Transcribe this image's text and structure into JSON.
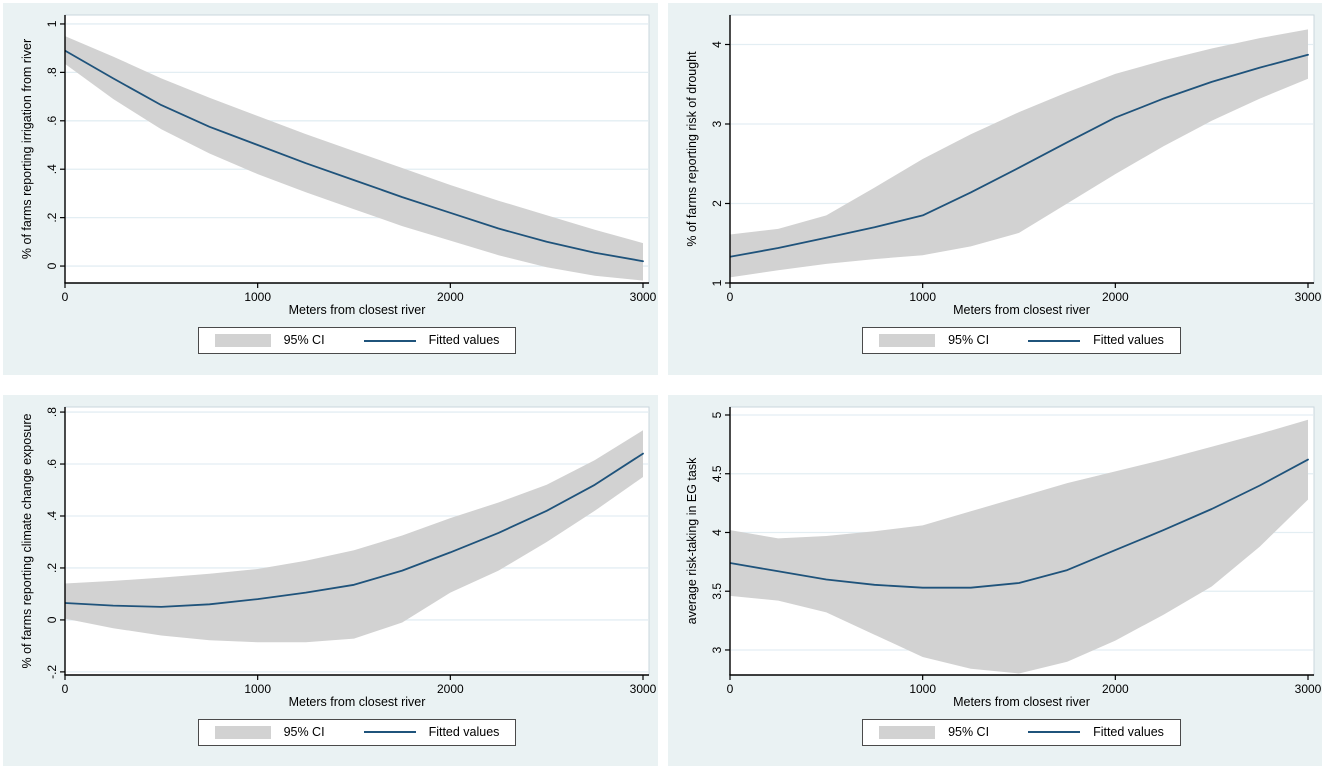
{
  "figure": {
    "x_axis_title": "Meters from closest river",
    "legend": {
      "ci_label": "95% CI",
      "fitted_label": "Fitted values"
    }
  },
  "colors": {
    "panel_bg": "#eaf2f3",
    "plot_bg": "#ffffff",
    "grid": "#e3eef3",
    "plot_border": "#c9d7de",
    "ci_fill": "#d2d2d2",
    "fitted_line": "#1f537b",
    "axis": "#000000",
    "legend_border": "#4a4a4a"
  },
  "panels": [
    {
      "y_title": "% of farms reporting irrigation from river",
      "x_title": "Meters from closest river",
      "legend_ci": "95% CI",
      "legend_fitted": "Fitted values"
    },
    {
      "y_title": "% of farms reporting risk of drought",
      "x_title": "Meters from closest river",
      "legend_ci": "95% CI",
      "legend_fitted": "Fitted values"
    },
    {
      "y_title": "% of farms reporting climate change exposure",
      "x_title": "Meters from closest river",
      "legend_ci": "95% CI",
      "legend_fitted": "Fitted values"
    },
    {
      "y_title": "average risk-taking in EG task",
      "x_title": "Meters from closest river",
      "legend_ci": "95% CI",
      "legend_fitted": "Fitted values"
    }
  ],
  "chart_data": [
    {
      "type": "line",
      "ylabel": "% of farms reporting irrigation from river",
      "xlabel": "Meters from closest river",
      "legend_position": "bottom",
      "grid": true,
      "x": [
        0,
        250,
        500,
        750,
        1000,
        1250,
        1500,
        1750,
        2000,
        2250,
        2500,
        2750,
        3000
      ],
      "x_ticks": [
        0,
        1000,
        2000,
        3000
      ],
      "y_ticks": [
        "0",
        ".2",
        ".4",
        ".6",
        ".8",
        "1"
      ],
      "y_tick_values": [
        0,
        0.2,
        0.4,
        0.6,
        0.8,
        1
      ],
      "ylim": [
        -0.07,
        1.037
      ],
      "series": [
        {
          "name": "Fitted values",
          "values": [
            0.89,
            0.775,
            0.665,
            0.575,
            0.5,
            0.425,
            0.355,
            0.285,
            0.22,
            0.155,
            0.1,
            0.055,
            0.02
          ]
        },
        {
          "name": "95% CI upper",
          "values": [
            0.95,
            0.865,
            0.775,
            0.695,
            0.62,
            0.545,
            0.475,
            0.405,
            0.335,
            0.27,
            0.21,
            0.15,
            0.095
          ]
        },
        {
          "name": "95% CI lower",
          "values": [
            0.835,
            0.69,
            0.565,
            0.465,
            0.38,
            0.305,
            0.235,
            0.165,
            0.105,
            0.045,
            -0.005,
            -0.04,
            -0.06
          ]
        }
      ]
    },
    {
      "type": "line",
      "ylabel": "% of farms reporting risk of drought",
      "xlabel": "Meters from closest river",
      "legend_position": "bottom",
      "grid": true,
      "x": [
        0,
        250,
        500,
        750,
        1000,
        1250,
        1500,
        1750,
        2000,
        2250,
        2500,
        2750,
        3000
      ],
      "x_ticks": [
        0,
        1000,
        2000,
        3000
      ],
      "y_ticks": [
        "1",
        "2",
        "3",
        "4"
      ],
      "y_tick_values": [
        1,
        2,
        3,
        4
      ],
      "ylim": [
        1.0,
        4.371
      ],
      "series": [
        {
          "name": "Fitted values",
          "values": [
            1.33,
            1.44,
            1.57,
            1.7,
            1.85,
            2.14,
            2.45,
            2.77,
            3.08,
            3.32,
            3.53,
            3.71,
            3.87
          ]
        },
        {
          "name": "95% CI upper",
          "values": [
            1.61,
            1.68,
            1.85,
            2.2,
            2.56,
            2.87,
            3.15,
            3.4,
            3.63,
            3.8,
            3.95,
            4.08,
            4.19
          ]
        },
        {
          "name": "95% CI lower",
          "values": [
            1.07,
            1.16,
            1.24,
            1.3,
            1.35,
            1.46,
            1.63,
            2.0,
            2.37,
            2.72,
            3.04,
            3.32,
            3.57
          ]
        }
      ]
    },
    {
      "type": "line",
      "ylabel": "% of farms reporting climate change exposure",
      "xlabel": "Meters from closest river",
      "legend_position": "bottom",
      "grid": true,
      "x": [
        0,
        250,
        500,
        750,
        1000,
        1250,
        1500,
        1750,
        2000,
        2250,
        2500,
        2750,
        3000
      ],
      "x_ticks": [
        0,
        1000,
        2000,
        3000
      ],
      "y_ticks": [
        "-.2",
        "0",
        ".2",
        ".4",
        ".6",
        ".8"
      ],
      "y_tick_values": [
        -0.2,
        0,
        0.2,
        0.4,
        0.6,
        0.8
      ],
      "ylim": [
        -0.212,
        0.8195
      ],
      "series": [
        {
          "name": "Fitted values",
          "values": [
            0.065,
            0.055,
            0.05,
            0.06,
            0.08,
            0.105,
            0.135,
            0.19,
            0.26,
            0.335,
            0.42,
            0.52,
            0.64
          ]
        },
        {
          "name": "95% CI upper",
          "values": [
            0.14,
            0.15,
            0.163,
            0.178,
            0.196,
            0.228,
            0.268,
            0.325,
            0.392,
            0.452,
            0.52,
            0.615,
            0.73
          ]
        },
        {
          "name": "95% CI lower",
          "values": [
            0.005,
            -0.032,
            -0.06,
            -0.078,
            -0.086,
            -0.086,
            -0.072,
            -0.01,
            0.105,
            0.19,
            0.3,
            0.42,
            0.55
          ]
        }
      ]
    },
    {
      "type": "line",
      "ylabel": "average risk-taking in EG task",
      "xlabel": "Meters from closest river",
      "legend_position": "bottom",
      "grid": true,
      "x": [
        0,
        250,
        500,
        750,
        1000,
        1250,
        1500,
        1750,
        2000,
        2250,
        2500,
        2750,
        3000
      ],
      "x_ticks": [
        0,
        1000,
        2000,
        3000
      ],
      "y_ticks": [
        "3",
        "3.5",
        "4",
        "4.5",
        "5"
      ],
      "y_tick_values": [
        3,
        3.5,
        4,
        4.5,
        5
      ],
      "ylim": [
        2.787,
        5.068
      ],
      "series": [
        {
          "name": "Fitted values",
          "values": [
            3.74,
            3.67,
            3.6,
            3.555,
            3.53,
            3.53,
            3.57,
            3.68,
            3.85,
            4.02,
            4.2,
            4.4,
            4.62
          ]
        },
        {
          "name": "95% CI upper",
          "values": [
            4.02,
            3.95,
            3.97,
            4.01,
            4.06,
            4.18,
            4.3,
            4.42,
            4.52,
            4.62,
            4.73,
            4.84,
            4.96
          ]
        },
        {
          "name": "95% CI lower",
          "values": [
            3.46,
            3.42,
            3.32,
            3.13,
            2.94,
            2.84,
            2.8,
            2.9,
            3.08,
            3.3,
            3.54,
            3.88,
            4.28
          ]
        }
      ]
    }
  ]
}
